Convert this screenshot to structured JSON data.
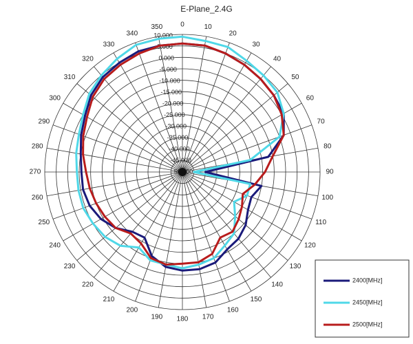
{
  "chart_data": {
    "type": "polar",
    "title": "E-Plane_2.4G",
    "x": [
      0,
      10,
      20,
      30,
      40,
      50,
      60,
      70,
      80,
      90,
      100,
      110,
      120,
      130,
      140,
      150,
      160,
      170,
      180,
      190,
      200,
      210,
      220,
      230,
      240,
      250,
      260,
      270,
      280,
      290,
      300,
      310,
      320,
      330,
      340,
      350
    ],
    "ylim": [
      -50,
      10
    ],
    "yticks": [
      {
        "value": 10,
        "label": "10.000"
      },
      {
        "value": 5,
        "label": "5.000"
      },
      {
        "value": 0,
        "label": "0.000"
      },
      {
        "value": -5,
        "label": "-5.000"
      },
      {
        "value": -10,
        "label": "-10.000"
      },
      {
        "value": -15,
        "label": "-15.000"
      },
      {
        "value": -20,
        "label": "-20.000"
      },
      {
        "value": -25,
        "label": "-25.000"
      },
      {
        "value": -30,
        "label": "-30.000"
      },
      {
        "value": -35,
        "label": "-35.000"
      },
      {
        "value": -40,
        "label": "-40.000"
      },
      {
        "value": -45,
        "label": "-45.000"
      },
      {
        "value": -50,
        "label": "-50.000"
      }
    ],
    "grid": true,
    "legend": "bottom-right",
    "series": [
      {
        "name": "2400[MHz]",
        "color": "#1a1a7a",
        "values": [
          6,
          6,
          5,
          4,
          3,
          2,
          1,
          -3,
          -12,
          -40,
          -15,
          -18,
          -17,
          -14,
          -12,
          -11,
          -8,
          -7,
          -7,
          -8,
          -11,
          -17,
          -16,
          -12,
          -9,
          -7,
          -6,
          -6,
          -5,
          -3,
          -1,
          2,
          4,
          5,
          6,
          6
        ]
      },
      {
        "name": "2450[MHz]",
        "color": "#4fd8e8",
        "values": [
          9,
          8,
          8,
          6,
          5,
          4,
          1,
          -5,
          -20,
          -45,
          -20,
          -20,
          -24,
          -20,
          -15,
          -13,
          -10,
          -9,
          -8,
          -9,
          -9,
          -12,
          -8,
          -6,
          -5,
          -4,
          -4,
          -4,
          -3,
          -2,
          0,
          3,
          5,
          7,
          9,
          9
        ]
      },
      {
        "name": "2500[MHz]",
        "color": "#b81c1c",
        "values": [
          6,
          6,
          5,
          4,
          3,
          2,
          0,
          -3,
          -10,
          -14,
          -18,
          -22,
          -20,
          -18,
          -16,
          -17,
          -12,
          -10,
          -10,
          -9,
          -10,
          -14,
          -15,
          -12,
          -11,
          -10,
          -9,
          -8,
          -6,
          -4,
          -2,
          1,
          3,
          4,
          5,
          6
        ]
      }
    ]
  }
}
